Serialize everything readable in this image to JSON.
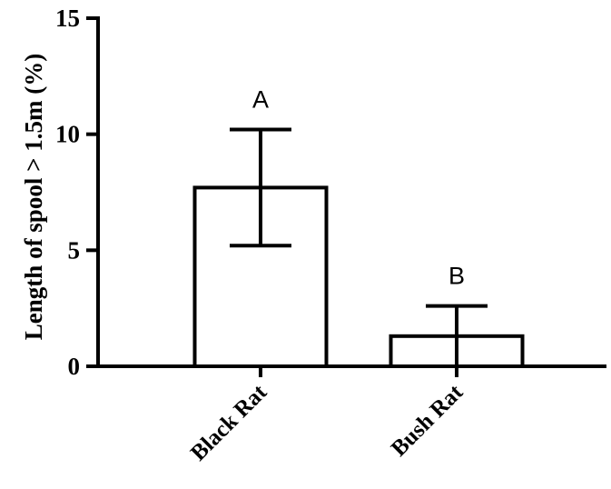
{
  "chart_data": {
    "type": "bar",
    "categories": [
      "Black Rat",
      "Bush Rat"
    ],
    "values": [
      7.7,
      1.3
    ],
    "error_upper": [
      10.2,
      2.6
    ],
    "error_lower": [
      5.2,
      0.0
    ],
    "significance_labels": [
      "A",
      "B"
    ],
    "title": "",
    "xlabel": "",
    "ylabel": "Length of spool > 1.5m (%)",
    "ylim": [
      0,
      15
    ],
    "yticks": [
      "0",
      "5",
      "10",
      "15"
    ],
    "grid": false,
    "legend": "none",
    "bar_fill": "#ffffff",
    "stroke_color": "#000000"
  }
}
